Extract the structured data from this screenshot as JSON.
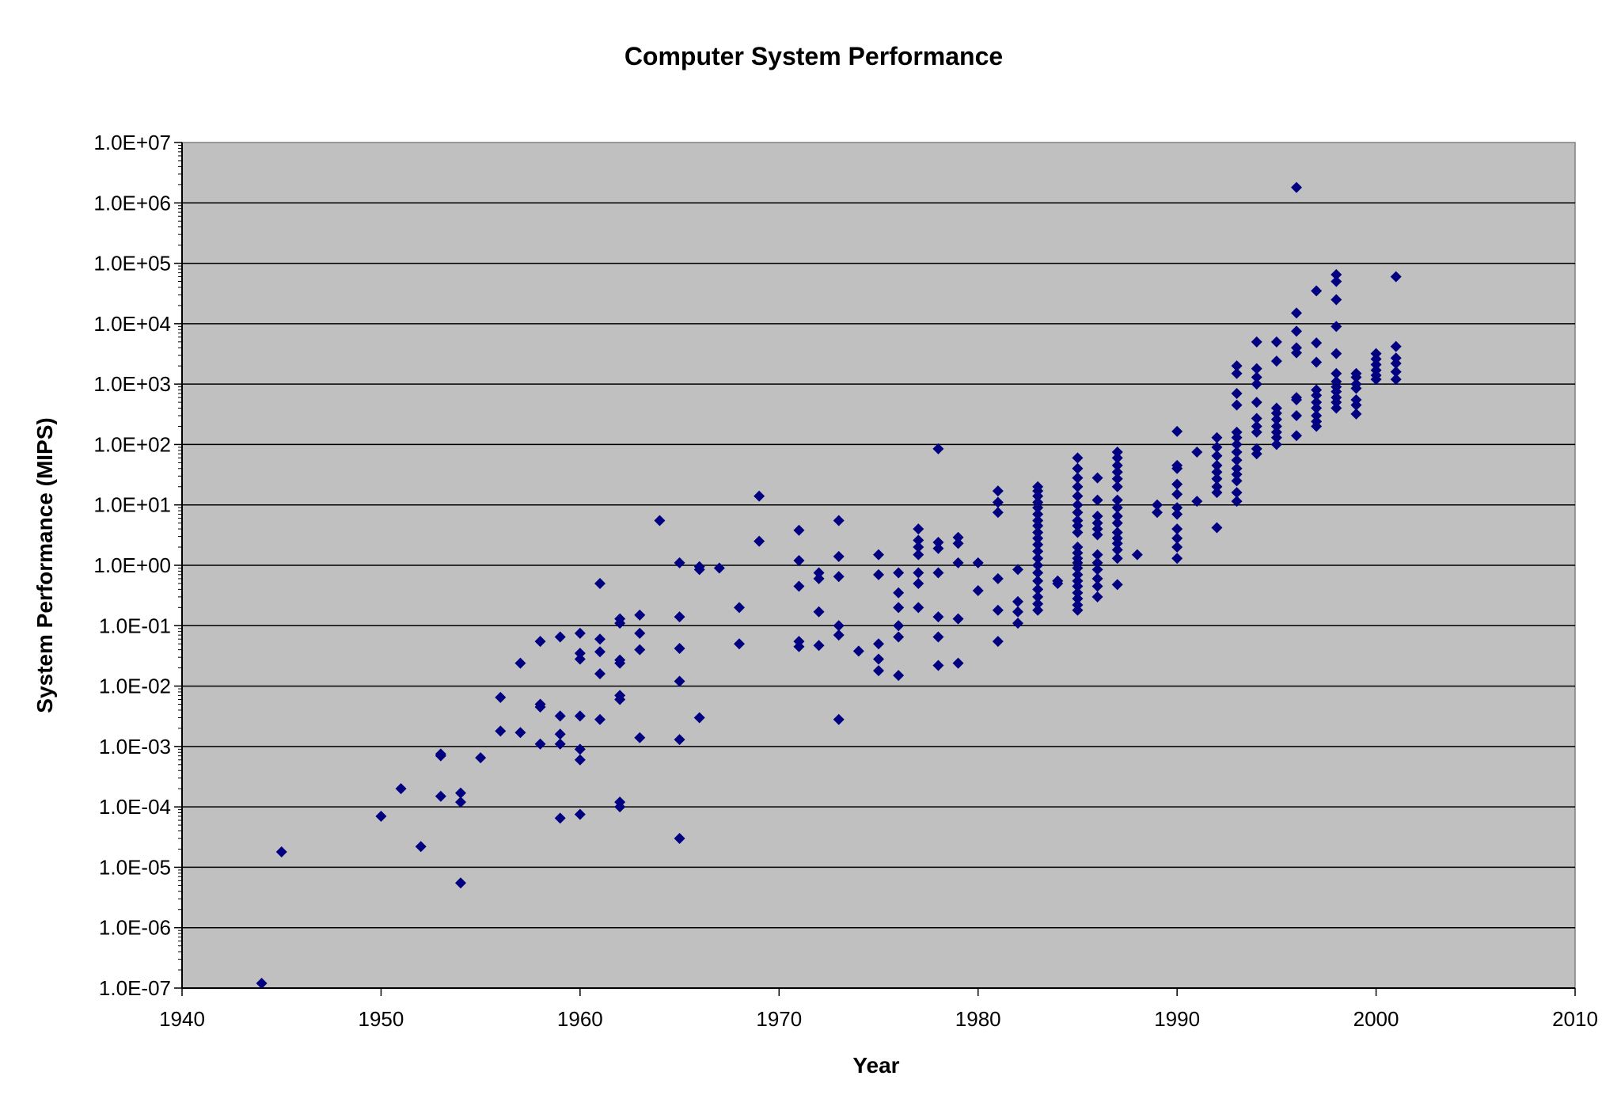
{
  "chart_data": {
    "type": "scatter",
    "title": "Computer System Performance",
    "xlabel": "Year",
    "ylabel": "System Performance (MIPS)",
    "xlim": [
      1940,
      2010
    ],
    "x_ticks": [
      1940,
      1950,
      1960,
      1970,
      1980,
      1990,
      2000,
      2010
    ],
    "y_scale": "log",
    "ylim": [
      1e-07,
      10000000.0
    ],
    "y_ticks": [
      {
        "value": 1e-07,
        "label": "1.0E-07"
      },
      {
        "value": 1e-06,
        "label": "1.0E-06"
      },
      {
        "value": 1e-05,
        "label": "1.0E-05"
      },
      {
        "value": 0.0001,
        "label": "1.0E-04"
      },
      {
        "value": 0.001,
        "label": "1.0E-03"
      },
      {
        "value": 0.01,
        "label": "1.0E-02"
      },
      {
        "value": 0.1,
        "label": "1.0E-01"
      },
      {
        "value": 1.0,
        "label": "1.0E+00"
      },
      {
        "value": 10.0,
        "label": "1.0E+01"
      },
      {
        "value": 100.0,
        "label": "1.0E+02"
      },
      {
        "value": 1000.0,
        "label": "1.0E+03"
      },
      {
        "value": 10000.0,
        "label": "1.0E+04"
      },
      {
        "value": 100000.0,
        "label": "1.0E+05"
      },
      {
        "value": 1000000.0,
        "label": "1.0E+06"
      },
      {
        "value": 10000000.0,
        "label": "1.0E+07"
      }
    ],
    "grid": "horizontal major",
    "legend": "none",
    "colors": {
      "plot_background": "#c0c0c0",
      "marker": "#000080",
      "gridline": "#000000"
    },
    "marker": "diamond",
    "points": [
      [
        1944,
        1.2e-07
      ],
      [
        1945,
        1.8e-05
      ],
      [
        1950,
        7e-05
      ],
      [
        1951,
        0.0002
      ],
      [
        1952,
        2.2e-05
      ],
      [
        1953,
        0.0007
      ],
      [
        1953,
        0.00075
      ],
      [
        1953,
        0.00015
      ],
      [
        1954,
        0.00017
      ],
      [
        1954,
        0.00012
      ],
      [
        1954,
        5.5e-06
      ],
      [
        1955,
        0.00065
      ],
      [
        1956,
        0.0065
      ],
      [
        1956,
        0.0018
      ],
      [
        1957,
        0.024
      ],
      [
        1957,
        0.0017
      ],
      [
        1958,
        0.055
      ],
      [
        1958,
        0.005
      ],
      [
        1958,
        0.0045
      ],
      [
        1958,
        0.0011
      ],
      [
        1959,
        0.065
      ],
      [
        1959,
        0.0032
      ],
      [
        1959,
        0.0016
      ],
      [
        1959,
        0.0011
      ],
      [
        1959,
        6.5e-05
      ],
      [
        1960,
        0.075
      ],
      [
        1960,
        0.035
      ],
      [
        1960,
        0.028
      ],
      [
        1960,
        0.0032
      ],
      [
        1960,
        0.0009
      ],
      [
        1960,
        0.0006
      ],
      [
        1960,
        7.5e-05
      ],
      [
        1961,
        0.5
      ],
      [
        1961,
        0.06
      ],
      [
        1961,
        0.037
      ],
      [
        1961,
        0.016
      ],
      [
        1961,
        0.0028
      ],
      [
        1962,
        0.13
      ],
      [
        1962,
        0.11
      ],
      [
        1962,
        0.027
      ],
      [
        1962,
        0.024
      ],
      [
        1962,
        0.007
      ],
      [
        1962,
        0.006
      ],
      [
        1962,
        0.00012
      ],
      [
        1962,
        0.0001
      ],
      [
        1963,
        0.15
      ],
      [
        1963,
        0.075
      ],
      [
        1963,
        0.04
      ],
      [
        1963,
        0.0014
      ],
      [
        1964,
        5.5
      ],
      [
        1965,
        1.1
      ],
      [
        1965,
        0.14
      ],
      [
        1965,
        0.042
      ],
      [
        1965,
        0.012
      ],
      [
        1965,
        0.0013
      ],
      [
        1965,
        3e-05
      ],
      [
        1966,
        0.95
      ],
      [
        1966,
        0.85
      ],
      [
        1966,
        0.003
      ],
      [
        1967,
        0.9
      ],
      [
        1968,
        0.2
      ],
      [
        1968,
        0.05
      ],
      [
        1969,
        14
      ],
      [
        1969,
        2.5
      ],
      [
        1971,
        3.8
      ],
      [
        1971,
        1.2
      ],
      [
        1971,
        0.45
      ],
      [
        1971,
        0.055
      ],
      [
        1971,
        0.045
      ],
      [
        1972,
        0.75
      ],
      [
        1972,
        0.6
      ],
      [
        1972,
        0.17
      ],
      [
        1972,
        0.047
      ],
      [
        1973,
        5.5
      ],
      [
        1973,
        1.4
      ],
      [
        1973,
        0.65
      ],
      [
        1973,
        0.1
      ],
      [
        1973,
        0.07
      ],
      [
        1973,
        0.0028
      ],
      [
        1974,
        0.038
      ],
      [
        1975,
        1.5
      ],
      [
        1975,
        0.7
      ],
      [
        1975,
        0.05
      ],
      [
        1975,
        0.028
      ],
      [
        1975,
        0.018
      ],
      [
        1976,
        0.75
      ],
      [
        1976,
        0.35
      ],
      [
        1976,
        0.2
      ],
      [
        1976,
        0.1
      ],
      [
        1976,
        0.065
      ],
      [
        1976,
        0.015
      ],
      [
        1977,
        4
      ],
      [
        1977,
        2.6
      ],
      [
        1977,
        2
      ],
      [
        1977,
        1.5
      ],
      [
        1977,
        0.75
      ],
      [
        1977,
        0.5
      ],
      [
        1977,
        0.2
      ],
      [
        1978,
        85
      ],
      [
        1978,
        2.4
      ],
      [
        1978,
        1.9
      ],
      [
        1978,
        0.75
      ],
      [
        1978,
        0.14
      ],
      [
        1978,
        0.065
      ],
      [
        1978,
        0.022
      ],
      [
        1979,
        2.9
      ],
      [
        1979,
        2.3
      ],
      [
        1979,
        1.1
      ],
      [
        1979,
        0.13
      ],
      [
        1979,
        0.024
      ],
      [
        1980,
        1.1
      ],
      [
        1980,
        0.38
      ],
      [
        1981,
        17
      ],
      [
        1981,
        11
      ],
      [
        1981,
        7.5
      ],
      [
        1981,
        0.6
      ],
      [
        1981,
        0.18
      ],
      [
        1981,
        0.055
      ],
      [
        1982,
        0.85
      ],
      [
        1982,
        0.25
      ],
      [
        1982,
        0.17
      ],
      [
        1982,
        0.11
      ],
      [
        1983,
        20
      ],
      [
        1983,
        17
      ],
      [
        1983,
        14
      ],
      [
        1983,
        11
      ],
      [
        1983,
        9
      ],
      [
        1983,
        7
      ],
      [
        1983,
        5.5
      ],
      [
        1983,
        4.5
      ],
      [
        1983,
        3.5
      ],
      [
        1983,
        2.8
      ],
      [
        1983,
        2.2
      ],
      [
        1983,
        1.7
      ],
      [
        1983,
        1.3
      ],
      [
        1983,
        1
      ],
      [
        1983,
        0.75
      ],
      [
        1983,
        0.55
      ],
      [
        1983,
        0.4
      ],
      [
        1983,
        0.3
      ],
      [
        1983,
        0.23
      ],
      [
        1983,
        0.18
      ],
      [
        1984,
        0.55
      ],
      [
        1984,
        0.5
      ],
      [
        1985,
        60
      ],
      [
        1985,
        40
      ],
      [
        1985,
        28
      ],
      [
        1985,
        20
      ],
      [
        1985,
        14
      ],
      [
        1985,
        10
      ],
      [
        1985,
        7.5
      ],
      [
        1985,
        5.5
      ],
      [
        1985,
        4.5
      ],
      [
        1985,
        3.5
      ],
      [
        1985,
        2
      ],
      [
        1985,
        1.6
      ],
      [
        1985,
        1.3
      ],
      [
        1985,
        1.1
      ],
      [
        1985,
        0.9
      ],
      [
        1985,
        0.7
      ],
      [
        1985,
        0.55
      ],
      [
        1985,
        0.45
      ],
      [
        1985,
        0.35
      ],
      [
        1985,
        0.28
      ],
      [
        1985,
        0.22
      ],
      [
        1985,
        0.18
      ],
      [
        1986,
        28
      ],
      [
        1986,
        12
      ],
      [
        1986,
        6.5
      ],
      [
        1986,
        5
      ],
      [
        1986,
        4
      ],
      [
        1986,
        3.2
      ],
      [
        1986,
        1.5
      ],
      [
        1986,
        1.1
      ],
      [
        1986,
        0.85
      ],
      [
        1986,
        0.6
      ],
      [
        1986,
        0.45
      ],
      [
        1986,
        0.3
      ],
      [
        1987,
        75
      ],
      [
        1987,
        60
      ],
      [
        1987,
        45
      ],
      [
        1987,
        35
      ],
      [
        1987,
        27
      ],
      [
        1987,
        20
      ],
      [
        1987,
        12
      ],
      [
        1987,
        9
      ],
      [
        1987,
        6.5
      ],
      [
        1987,
        5
      ],
      [
        1987,
        3.5
      ],
      [
        1987,
        2.8
      ],
      [
        1987,
        2.3
      ],
      [
        1987,
        1.8
      ],
      [
        1987,
        1.3
      ],
      [
        1987,
        0.48
      ],
      [
        1988,
        1.5
      ],
      [
        1989,
        10
      ],
      [
        1989,
        7.5
      ],
      [
        1990,
        165
      ],
      [
        1990,
        45
      ],
      [
        1990,
        40
      ],
      [
        1990,
        22
      ],
      [
        1990,
        15
      ],
      [
        1990,
        9
      ],
      [
        1990,
        7
      ],
      [
        1990,
        4
      ],
      [
        1990,
        2.8
      ],
      [
        1990,
        2
      ],
      [
        1990,
        1.3
      ],
      [
        1991,
        75
      ],
      [
        1991,
        11.5
      ],
      [
        1992,
        130
      ],
      [
        1992,
        90
      ],
      [
        1992,
        65
      ],
      [
        1992,
        45
      ],
      [
        1992,
        35
      ],
      [
        1992,
        27
      ],
      [
        1992,
        20
      ],
      [
        1992,
        16
      ],
      [
        1992,
        4.2
      ],
      [
        1993,
        2000
      ],
      [
        1993,
        1500
      ],
      [
        1993,
        700
      ],
      [
        1993,
        450
      ],
      [
        1993,
        160
      ],
      [
        1993,
        130
      ],
      [
        1993,
        100
      ],
      [
        1993,
        75
      ],
      [
        1993,
        55
      ],
      [
        1993,
        40
      ],
      [
        1993,
        32
      ],
      [
        1993,
        25
      ],
      [
        1993,
        16
      ],
      [
        1993,
        11.5
      ],
      [
        1994,
        5000
      ],
      [
        1994,
        1800
      ],
      [
        1994,
        1300
      ],
      [
        1994,
        1000
      ],
      [
        1994,
        500
      ],
      [
        1994,
        270
      ],
      [
        1994,
        200
      ],
      [
        1994,
        160
      ],
      [
        1994,
        85
      ],
      [
        1994,
        70
      ],
      [
        1995,
        5000
      ],
      [
        1995,
        2400
      ],
      [
        1995,
        400
      ],
      [
        1995,
        330
      ],
      [
        1995,
        260
      ],
      [
        1995,
        200
      ],
      [
        1995,
        160
      ],
      [
        1995,
        130
      ],
      [
        1995,
        100
      ],
      [
        1996,
        1800000
      ],
      [
        1996,
        15000
      ],
      [
        1996,
        7500
      ],
      [
        1996,
        4000
      ],
      [
        1996,
        3300
      ],
      [
        1996,
        600
      ],
      [
        1996,
        550
      ],
      [
        1996,
        300
      ],
      [
        1996,
        140
      ],
      [
        1997,
        35000
      ],
      [
        1997,
        4800
      ],
      [
        1997,
        2300
      ],
      [
        1997,
        800
      ],
      [
        1997,
        650
      ],
      [
        1997,
        500
      ],
      [
        1997,
        400
      ],
      [
        1997,
        300
      ],
      [
        1997,
        240
      ],
      [
        1997,
        200
      ],
      [
        1998,
        65000
      ],
      [
        1998,
        50000
      ],
      [
        1998,
        25000
      ],
      [
        1998,
        9000
      ],
      [
        1998,
        3200
      ],
      [
        1998,
        1500
      ],
      [
        1998,
        1100
      ],
      [
        1998,
        900
      ],
      [
        1998,
        750
      ],
      [
        1998,
        600
      ],
      [
        1998,
        500
      ],
      [
        1998,
        400
      ],
      [
        1999,
        1500
      ],
      [
        1999,
        1300
      ],
      [
        1999,
        1000
      ],
      [
        1999,
        850
      ],
      [
        1999,
        550
      ],
      [
        1999,
        450
      ],
      [
        1999,
        320
      ],
      [
        2000,
        3200
      ],
      [
        2000,
        2600
      ],
      [
        2000,
        2100
      ],
      [
        2000,
        1700
      ],
      [
        2000,
        1400
      ],
      [
        2000,
        1200
      ],
      [
        2001,
        60000
      ],
      [
        2001,
        4200
      ],
      [
        2001,
        2700
      ],
      [
        2001,
        2200
      ],
      [
        2001,
        1600
      ],
      [
        2001,
        1200
      ]
    ]
  }
}
